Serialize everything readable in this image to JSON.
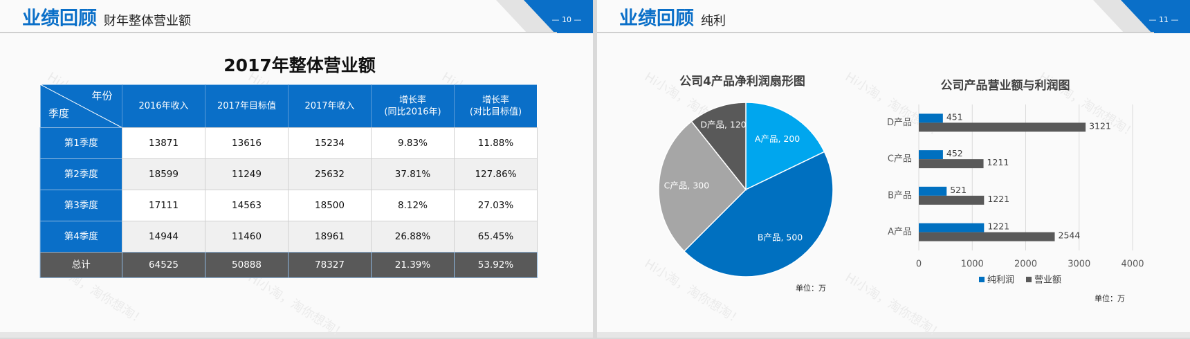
{
  "slides": [
    {
      "title": "业绩回顾",
      "subtitle": "财年整体营业额",
      "page": "— 10 —"
    },
    {
      "title": "业绩回顾",
      "subtitle": "纯利",
      "page": "— 11 —"
    }
  ],
  "watermark": "Hi小淘，淘你想淘！",
  "table": {
    "title": "2017年整体营业额",
    "corner_top": "年份",
    "corner_bottom": "季度",
    "header": [
      [
        "2016年收入"
      ],
      [
        "2017年目标值"
      ],
      [
        "2017年收入"
      ],
      [
        "增长率",
        "(同比2016年)"
      ],
      [
        "增长率",
        "(对比目标值)"
      ]
    ],
    "rows": [
      [
        "第1季度",
        "13871",
        "13616",
        "15234",
        "9.83%",
        "11.88%"
      ],
      [
        "第2季度",
        "18599",
        "11249",
        "25632",
        "37.81%",
        "127.86%"
      ],
      [
        "第3季度",
        "17111",
        "14563",
        "18500",
        "8.12%",
        "27.03%"
      ],
      [
        "第4季度",
        "14944",
        "11460",
        "18961",
        "26.88%",
        "65.45%"
      ],
      [
        "总计",
        "64525",
        "50888",
        "78327",
        "21.39%",
        "53.92%"
      ]
    ]
  },
  "chart_data": [
    {
      "type": "pie",
      "title": "公司4产品净利润扇形图",
      "categories": [
        "A产品",
        "B产品",
        "C产品",
        "D产品"
      ],
      "values": [
        200,
        500,
        300,
        120
      ],
      "value_labels": [
        "A产品, 200",
        "B产品, 500",
        "C产品, 300",
        "D产品, 120"
      ],
      "colors": [
        "#00a6ee",
        "#0070c0",
        "#a6a6a6",
        "#595959"
      ],
      "unit_note": "单位：万"
    },
    {
      "type": "bar",
      "orientation": "horizontal",
      "title": "公司产品营业额与利润图",
      "categories": [
        "A产品",
        "B产品",
        "C产品",
        "D产品"
      ],
      "series": [
        {
          "name": "纯利润",
          "color": "#0070c0",
          "values": [
            1221,
            521,
            452,
            451
          ]
        },
        {
          "name": "营业额",
          "color": "#595959",
          "values": [
            2544,
            1221,
            1211,
            3121
          ]
        }
      ],
      "xlim": [
        0,
        4000
      ],
      "xticks": [
        0,
        1000,
        2000,
        3000,
        4000
      ],
      "grid": true,
      "legend": "bottom",
      "unit_note": "单位：万"
    }
  ]
}
